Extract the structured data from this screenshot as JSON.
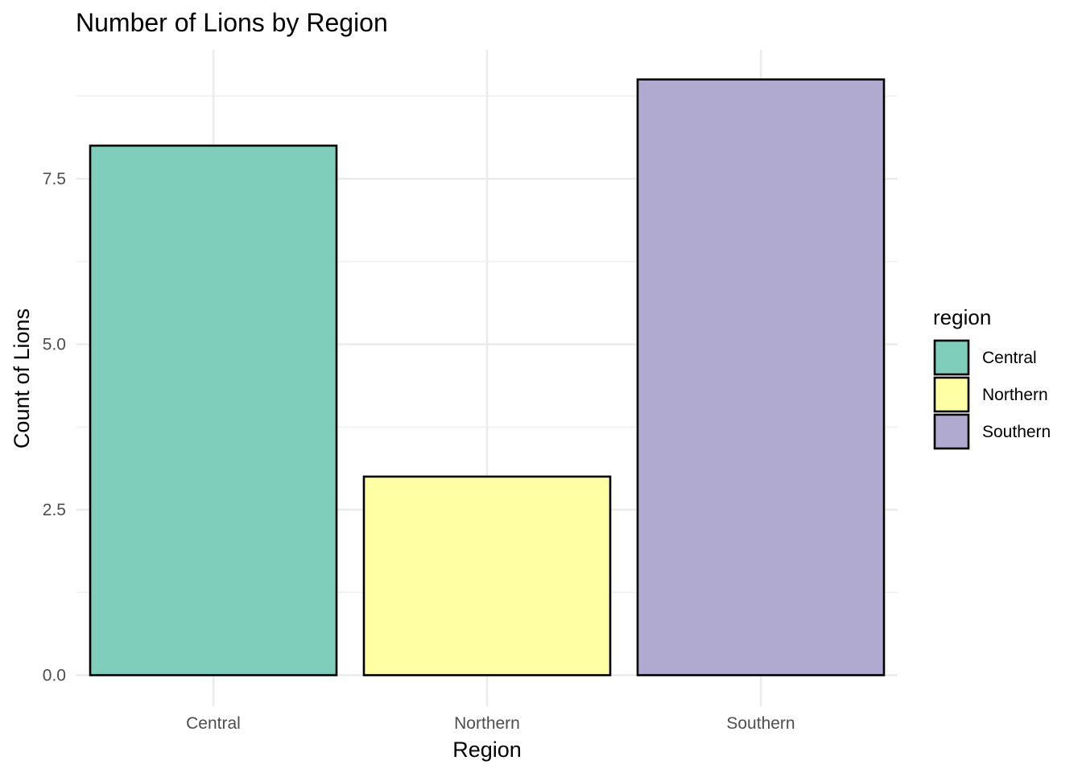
{
  "chart_data": {
    "type": "bar",
    "title": "Number of Lions by Region",
    "xlabel": "Region",
    "ylabel": "Count of Lions",
    "categories": [
      "Central",
      "Northern",
      "Southern"
    ],
    "values": [
      8,
      3,
      9
    ],
    "colors": [
      "#7fcdbb",
      "#ffffa3",
      "#b0aad1"
    ],
    "ylim": [
      0,
      9.45
    ],
    "yticks": [
      0,
      2.5,
      5,
      7.5
    ],
    "ytick_labels": [
      "0.0",
      "2.5",
      "5.0",
      "7.5"
    ],
    "yminor_ticks": [
      1.25,
      3.75,
      6.25,
      8.75
    ],
    "grid": true,
    "legend": {
      "title": "region",
      "placement": "right",
      "entries": [
        "Central",
        "Northern",
        "Southern"
      ]
    }
  }
}
